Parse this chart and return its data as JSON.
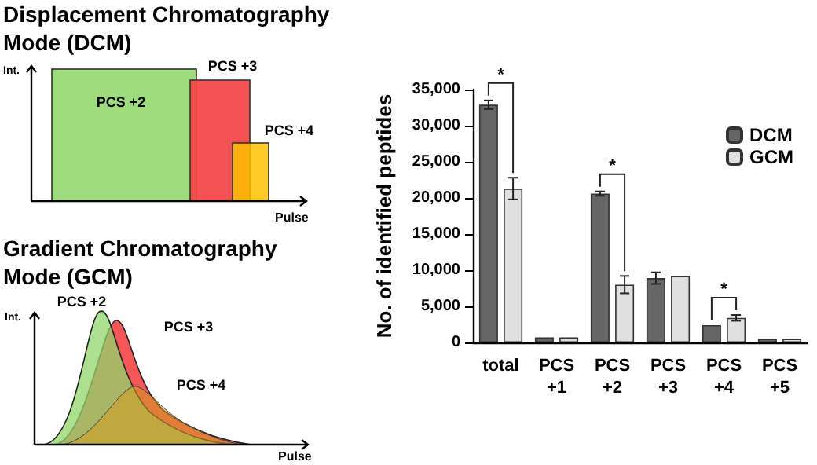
{
  "chart_data": [
    {
      "type": "other",
      "title": "Displacement Chromatography Mode (DCM)",
      "xlabel": "Pulse",
      "ylabel": "Int.",
      "annotations": [
        "PCS +2",
        "PCS +3",
        "PCS +4"
      ]
    },
    {
      "type": "other",
      "title": "Gradient Chromatography Mode (GCM)",
      "xlabel": "Pulse",
      "ylabel": "Int.",
      "annotations": [
        "PCS +2",
        "PCS +3",
        "PCS +4"
      ]
    },
    {
      "type": "bar",
      "ylabel": "No. of identified peptides",
      "categories": [
        "total",
        "PCS +1",
        "PCS +2",
        "PCS +3",
        "PCS +4",
        "PCS +5"
      ],
      "series": [
        {
          "name": "DCM",
          "color": "#666666",
          "values": [
            32900,
            700,
            20600,
            8900,
            2400,
            500
          ],
          "errors": [
            600,
            null,
            300,
            800,
            null,
            null
          ]
        },
        {
          "name": "GCM",
          "color": "#e0e0e0",
          "values": [
            21300,
            700,
            8000,
            9200,
            3400,
            500
          ],
          "errors": [
            1500,
            null,
            1200,
            null,
            400,
            null
          ]
        }
      ],
      "ylim": [
        0,
        35000
      ],
      "yticks": [
        {
          "value": 0,
          "label": "0"
        },
        {
          "value": 5000,
          "label": "5,000"
        },
        {
          "value": 10000,
          "label": "10,000"
        },
        {
          "value": 15000,
          "label": "15,000"
        },
        {
          "value": 20000,
          "label": "20,000"
        },
        {
          "value": 25000,
          "label": "25,000"
        },
        {
          "value": 30000,
          "label": "30,000"
        },
        {
          "value": 35000,
          "label": "35,000"
        }
      ],
      "legend": "top right",
      "grid": false,
      "annotations": [
        {
          "text": "*",
          "x": "total",
          "y": 32900
        },
        {
          "text": "*",
          "x": "PCS +2",
          "y": 20600
        },
        {
          "text": "*",
          "x": "PCS +4",
          "y": 2400
        }
      ]
    }
  ]
}
